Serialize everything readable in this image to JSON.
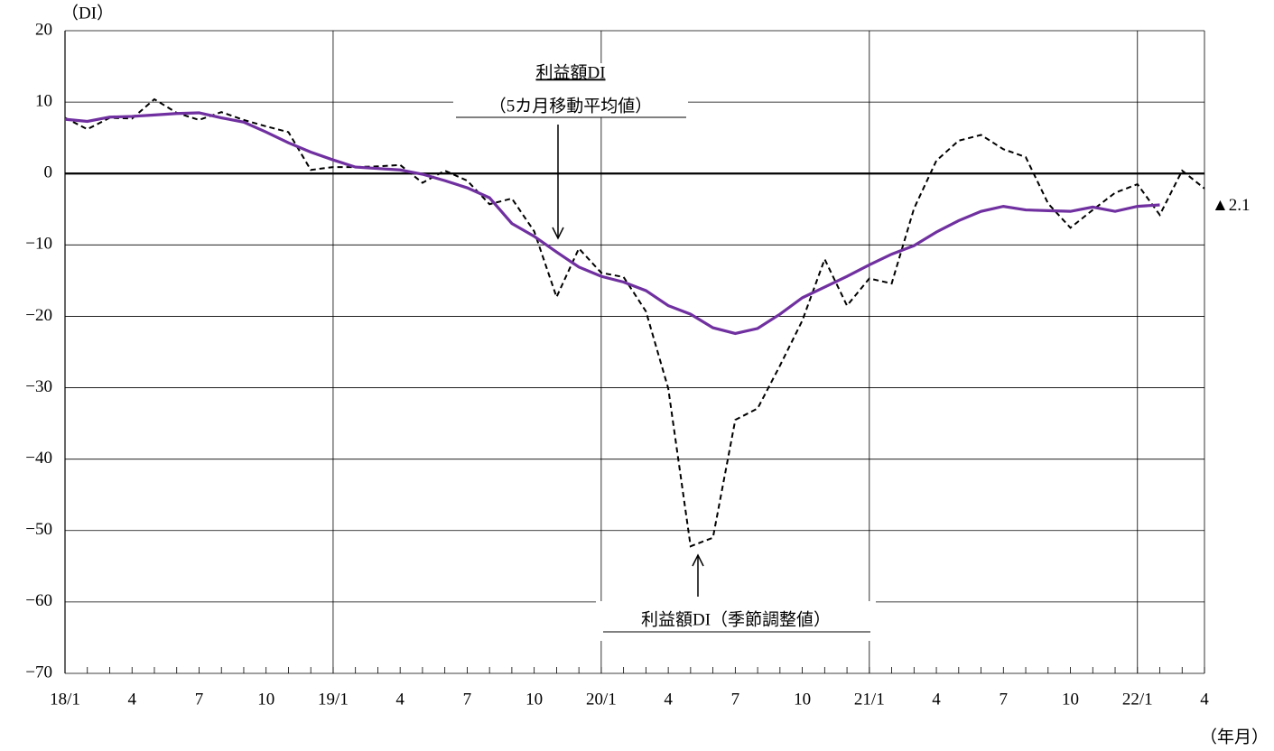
{
  "chart_data": {
    "type": "line",
    "y_unit": "（DI）",
    "x_unit": "（年月）",
    "categories": [
      "18/1",
      null,
      null,
      "4",
      null,
      null,
      "7",
      null,
      null,
      "10",
      null,
      null,
      "19/1",
      null,
      null,
      "4",
      null,
      null,
      "7",
      null,
      null,
      "10",
      null,
      null,
      "20/1",
      null,
      null,
      "4",
      null,
      null,
      "7",
      null,
      null,
      "10",
      null,
      null,
      "21/1",
      null,
      null,
      "4",
      null,
      null,
      "7",
      null,
      null,
      "10",
      null,
      null,
      "22/1",
      null,
      null,
      "4"
    ],
    "series": [
      {
        "name": "利益額DI（季節調整値）",
        "color": "#000000",
        "dash": true,
        "values": [
          7.8,
          6.2,
          7.8,
          7.7,
          10.4,
          8.5,
          7.5,
          8.6,
          7.5,
          6.6,
          5.8,
          0.5,
          0.9,
          0.9,
          1.0,
          1.2,
          -1.3,
          0.4,
          -1.0,
          -4.3,
          -3.5,
          -8.1,
          -17.3,
          -10.5,
          -13.9,
          -14.5,
          -19.3,
          -30.1,
          -52.2,
          -51.0,
          -34.5,
          -32.9,
          -26.9,
          -20.6,
          -12.0,
          -18.5,
          -14.7,
          -15.4,
          -4.9,
          1.8,
          4.6,
          5.4,
          3.4,
          2.3,
          -4.2,
          -7.6,
          -5.1,
          -2.7,
          -1.5,
          -5.8,
          0.4,
          -2.1
        ],
        "value_labels": [
          null,
          null,
          null,
          null,
          null,
          null,
          null,
          null,
          null,
          null,
          null,
          null,
          null,
          null,
          null,
          null,
          null,
          null,
          null,
          null,
          null,
          null,
          null,
          null,
          null,
          null,
          null,
          null,
          null,
          null,
          null,
          null,
          null,
          null,
          null,
          null,
          null,
          null,
          null,
          null,
          null,
          null,
          null,
          null,
          null,
          null,
          null,
          null,
          null,
          null,
          null,
          "▲2.1"
        ]
      },
      {
        "name": "利益額DI",
        "name2": "（5カ月移動平均値）",
        "color": "#7030a0",
        "dash": false,
        "values": [
          7.6,
          7.3,
          7.9,
          8.0,
          8.2,
          8.4,
          8.5,
          7.8,
          7.2,
          5.8,
          4.3,
          3.0,
          1.9,
          0.9,
          0.7,
          0.5,
          -0.1,
          -1.0,
          -2.0,
          -3.4,
          -7.0,
          -8.8,
          -11.0,
          -13.1,
          -14.4,
          -15.2,
          -16.4,
          -18.5,
          -19.7,
          -21.6,
          -22.4,
          -21.7,
          -19.7,
          -17.4,
          -15.9,
          -14.4,
          -12.8,
          -11.3,
          -10.1,
          -8.2,
          -6.6,
          -5.3,
          -4.6,
          -5.1,
          -5.2,
          -5.3,
          -4.7,
          -5.3,
          -4.6,
          -4.4,
          null,
          null
        ]
      }
    ],
    "ylim": [
      -70,
      20
    ],
    "yticks": [
      {
        "value": -70,
        "label": "−70"
      },
      {
        "value": -60,
        "label": "−60"
      },
      {
        "value": -50,
        "label": "−50"
      },
      {
        "value": -40,
        "label": "−40"
      },
      {
        "value": -30,
        "label": "−30"
      },
      {
        "value": -20,
        "label": "−20"
      },
      {
        "value": -10,
        "label": "−10"
      },
      0,
      10,
      20
    ],
    "grid": true
  }
}
